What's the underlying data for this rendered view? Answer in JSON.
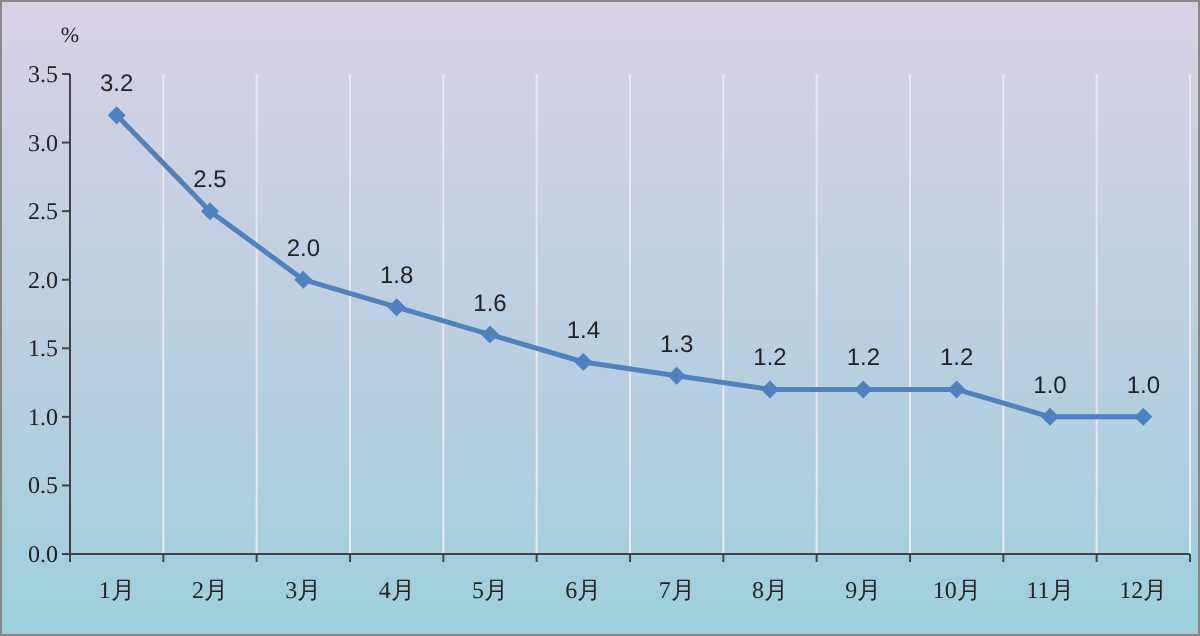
{
  "chart_data": {
    "type": "line",
    "ylabel": "%",
    "categories": [
      "1月",
      "2月",
      "3月",
      "4月",
      "5月",
      "6月",
      "7月",
      "8月",
      "9月",
      "10月",
      "11月",
      "12月"
    ],
    "series": [
      {
        "color": "#4f81bd",
        "values": [
          3.2,
          2.5,
          2.0,
          1.8,
          1.6,
          1.4,
          1.3,
          1.2,
          1.2,
          1.2,
          1.0,
          1.0
        ],
        "value_labels": [
          "3.2",
          "2.5",
          "2.0",
          "1.8",
          "1.6",
          "1.4",
          "1.3",
          "1.2",
          "1.2",
          "1.2",
          "1.0",
          "1.0"
        ]
      }
    ],
    "ylim": [
      0,
      3.5
    ],
    "yticks": [
      {
        "value": 0,
        "label": "0.0"
      },
      {
        "value": 0.5,
        "label": "0.5"
      },
      {
        "value": 1,
        "label": "1.0"
      },
      {
        "value": 1.5,
        "label": "1.5"
      },
      {
        "value": 2,
        "label": "2.0"
      },
      {
        "value": 2.5,
        "label": "2.5"
      },
      {
        "value": 3,
        "label": "3.0"
      },
      {
        "value": 3.5,
        "label": "3.5"
      }
    ],
    "grid": "x",
    "marker": "diamond",
    "line_style": "solid"
  }
}
